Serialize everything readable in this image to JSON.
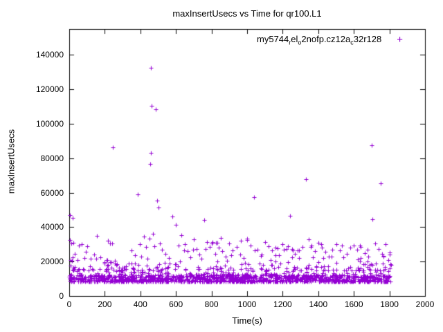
{
  "chart_data": {
    "type": "scatter",
    "title": "maxInsertUsecs vs Time for qr100.L1",
    "xlabel": "Time(s)",
    "ylabel": "maxInsertUsecs",
    "xlim": [
      0,
      2000
    ],
    "ylim": [
      0,
      155000
    ],
    "xticks": [
      0,
      200,
      400,
      600,
      800,
      1000,
      1200,
      1400,
      1600,
      1800,
      2000
    ],
    "yticks": [
      0,
      20000,
      40000,
      60000,
      80000,
      100000,
      120000,
      140000
    ],
    "grid": false,
    "legend": {
      "position": "top-right",
      "series_name_plain": "my5744_rel_o2nofp.cz12a_c32r128",
      "parts": [
        {
          "text": "my5744",
          "sub": false
        },
        {
          "text": "r",
          "sub": true
        },
        {
          "text": "el",
          "sub": false
        },
        {
          "text": "o",
          "sub": true
        },
        {
          "text": "2nofp.cz12a",
          "sub": false
        },
        {
          "text": "c",
          "sub": true
        },
        {
          "text": "32r128",
          "sub": false
        }
      ]
    },
    "marker": {
      "shape": "plus",
      "glyph": "+",
      "color": "#9400d3",
      "size": 3
    },
    "seed": 20240601,
    "dense_bands": [
      {
        "count": 950,
        "x_range": [
          0,
          1808
        ],
        "y_base": 8300,
        "y_spread": 4200,
        "bias": 1.8
      },
      {
        "count": 300,
        "x_range": [
          0,
          1808
        ],
        "y_base": 11000,
        "y_spread": 9000,
        "bias": 2.5
      },
      {
        "count": 120,
        "x_range": [
          0,
          1808
        ],
        "y_base": 15000,
        "y_spread": 20000,
        "bias": 3
      }
    ],
    "outlier_points": [
      [
        3,
        47000
      ],
      [
        5,
        32500
      ],
      [
        8,
        21000
      ],
      [
        12,
        30500
      ],
      [
        15,
        20500
      ],
      [
        20,
        45500
      ],
      [
        22,
        31000
      ],
      [
        30,
        24500
      ],
      [
        45,
        21000
      ],
      [
        55,
        29500
      ],
      [
        70,
        30000
      ],
      [
        85,
        22000
      ],
      [
        100,
        29000
      ],
      [
        120,
        21500
      ],
      [
        140,
        24000
      ],
      [
        155,
        35000
      ],
      [
        175,
        22500
      ],
      [
        200,
        19500
      ],
      [
        215,
        21000
      ],
      [
        230,
        30500
      ],
      [
        245,
        86500
      ],
      [
        255,
        20500
      ],
      [
        270,
        18500
      ],
      [
        300,
        16500
      ],
      [
        320,
        15500
      ],
      [
        350,
        19000
      ],
      [
        370,
        23500
      ],
      [
        385,
        59000
      ],
      [
        395,
        30000
      ],
      [
        405,
        23000
      ],
      [
        420,
        34500
      ],
      [
        430,
        28500
      ],
      [
        440,
        21500
      ],
      [
        450,
        33500
      ],
      [
        455,
        76500
      ],
      [
        458,
        83000
      ],
      [
        460,
        132500
      ],
      [
        462,
        110500
      ],
      [
        470,
        36000
      ],
      [
        478,
        29000
      ],
      [
        488,
        108500
      ],
      [
        495,
        55500
      ],
      [
        500,
        51500
      ],
      [
        510,
        30500
      ],
      [
        520,
        27000
      ],
      [
        540,
        24500
      ],
      [
        560,
        22000
      ],
      [
        580,
        46000
      ],
      [
        600,
        41500
      ],
      [
        615,
        29500
      ],
      [
        630,
        35500
      ],
      [
        650,
        30000
      ],
      [
        665,
        26000
      ],
      [
        680,
        22500
      ],
      [
        700,
        33000
      ],
      [
        715,
        27500
      ],
      [
        730,
        24000
      ],
      [
        745,
        21500
      ],
      [
        760,
        44000
      ],
      [
        775,
        31500
      ],
      [
        790,
        28500
      ],
      [
        805,
        31500
      ],
      [
        820,
        24500
      ],
      [
        840,
        28000
      ],
      [
        860,
        26000
      ],
      [
        880,
        23000
      ],
      [
        900,
        30500
      ],
      [
        920,
        26500
      ],
      [
        940,
        28500
      ],
      [
        960,
        24000
      ],
      [
        980,
        22000
      ],
      [
        1000,
        33500
      ],
      [
        1020,
        29500
      ],
      [
        1040,
        57500
      ],
      [
        1060,
        27000
      ],
      [
        1080,
        24000
      ],
      [
        1100,
        31500
      ],
      [
        1120,
        29000
      ],
      [
        1140,
        26500
      ],
      [
        1160,
        28000
      ],
      [
        1180,
        23500
      ],
      [
        1200,
        30000
      ],
      [
        1220,
        27500
      ],
      [
        1240,
        46500
      ],
      [
        1255,
        26500
      ],
      [
        1270,
        24500
      ],
      [
        1290,
        22000
      ],
      [
        1310,
        28500
      ],
      [
        1330,
        68000
      ],
      [
        1345,
        33000
      ],
      [
        1360,
        29500
      ],
      [
        1380,
        26000
      ],
      [
        1400,
        31000
      ],
      [
        1420,
        28000
      ],
      [
        1440,
        25500
      ],
      [
        1460,
        23000
      ],
      [
        1480,
        27000
      ],
      [
        1500,
        30000
      ],
      [
        1520,
        26500
      ],
      [
        1540,
        22500
      ],
      [
        1560,
        24500
      ],
      [
        1580,
        28000
      ],
      [
        1600,
        29500
      ],
      [
        1620,
        27000
      ],
      [
        1640,
        28500
      ],
      [
        1660,
        25000
      ],
      [
        1680,
        23000
      ],
      [
        1700,
        87500
      ],
      [
        1705,
        44500
      ],
      [
        1720,
        30500
      ],
      [
        1740,
        27500
      ],
      [
        1750,
        65500
      ],
      [
        1760,
        24500
      ],
      [
        1780,
        30000
      ],
      [
        1795,
        21000
      ],
      [
        1805,
        18500
      ]
    ]
  }
}
